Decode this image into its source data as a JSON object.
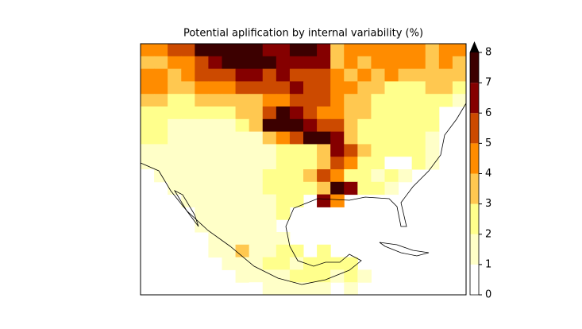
{
  "chart_data": {
    "type": "heatmap",
    "title": "Potential aplification by internal variability (%)",
    "values": [
      [
        4.5,
        4.5,
        5.5,
        5.5,
        7.5,
        7.5,
        7.5,
        7.5,
        7.5,
        6.5,
        6.5,
        7.5,
        7.5,
        6.5,
        3.5,
        4.5,
        4.5,
        4.5,
        4.5,
        4.5,
        4.5,
        3.5,
        4.5,
        4.5
      ],
      [
        3.5,
        3.5,
        4.5,
        4.5,
        5.5,
        6.5,
        7.5,
        7.5,
        7.5,
        7.5,
        6.5,
        6.5,
        6.5,
        6.5,
        3.5,
        4.5,
        3.5,
        4.5,
        4.5,
        4.5,
        4.5,
        3.5,
        4.5,
        3.5
      ],
      [
        4.5,
        4.5,
        3.5,
        4.5,
        5.5,
        5.5,
        5.5,
        6.5,
        6.5,
        5.5,
        6.5,
        5.5,
        5.5,
        5.5,
        4.5,
        3.5,
        4.5,
        3.5,
        4.5,
        3.5,
        3.5,
        3.5,
        3.5,
        3.5
      ],
      [
        4.5,
        4.5,
        3.5,
        3.5,
        4.5,
        4.5,
        4.5,
        5.5,
        5.5,
        5.5,
        5.5,
        6.5,
        5.5,
        5.5,
        4.5,
        4.5,
        3.5,
        3.5,
        2.5,
        2.5,
        2.5,
        3.5,
        3.5,
        2.5
      ],
      [
        3.5,
        3.5,
        2.5,
        2.5,
        3.5,
        3.5,
        3.5,
        3.5,
        3.5,
        4.5,
        4.5,
        5.5,
        5.5,
        5.5,
        4.5,
        3.5,
        3.5,
        2.5,
        2.5,
        2.5,
        2.5,
        2.5,
        2.5,
        1.5
      ],
      [
        2.5,
        2.5,
        2.5,
        2.5,
        2.5,
        2.5,
        2.5,
        3.5,
        3.5,
        5.5,
        7.5,
        6.5,
        5.5,
        4.5,
        4.5,
        3.5,
        3.5,
        2.5,
        2.5,
        2.5,
        2.5,
        2.5,
        null,
        null
      ],
      [
        2.5,
        2.5,
        1.5,
        1.5,
        1.5,
        1.5,
        1.5,
        2.5,
        3.5,
        7.5,
        7.5,
        7.5,
        6.5,
        5.5,
        5.5,
        3.5,
        2.5,
        2.5,
        2.5,
        2.5,
        2.5,
        2.5,
        null,
        null
      ],
      [
        2.5,
        2.5,
        1.5,
        1.5,
        1.5,
        1.5,
        1.5,
        1.5,
        1.5,
        3.5,
        4.5,
        5.5,
        7.5,
        7.5,
        6.5,
        3.5,
        2.5,
        2.5,
        2.5,
        2.5,
        2.5,
        1.5,
        null,
        null
      ],
      [
        1.5,
        1.5,
        1.5,
        1.5,
        1.5,
        1.5,
        1.5,
        1.5,
        1.5,
        1.5,
        2.5,
        2.5,
        2.5,
        3.5,
        6.5,
        5.5,
        3.5,
        2.5,
        2.5,
        2.5,
        2.5,
        1.5,
        null,
        null
      ],
      [
        1.5,
        1.5,
        1.5,
        1.5,
        1.5,
        1.5,
        1.5,
        1.5,
        1.5,
        1.5,
        2.5,
        2.5,
        2.5,
        3.5,
        5.5,
        4.5,
        2.5,
        2.5,
        0.5,
        0.5,
        2.5,
        1.5,
        null,
        null
      ],
      [
        0.5,
        1.5,
        1.5,
        1.5,
        1.5,
        1.5,
        1.5,
        1.5,
        1.5,
        2.5,
        2.5,
        2.5,
        3.5,
        5.5,
        4.5,
        2.5,
        2.5,
        1.5,
        2.5,
        1.5,
        null,
        null,
        null,
        null
      ],
      [
        null,
        null,
        1.5,
        1.5,
        1.5,
        1.5,
        1.5,
        1.5,
        1.5,
        2.5,
        2.5,
        2.5,
        2.5,
        3.5,
        7.5,
        6.5,
        2.5,
        2.5,
        1.5,
        null,
        null,
        null,
        null,
        null
      ],
      [
        null,
        null,
        null,
        1.5,
        1.5,
        1.5,
        1.5,
        1.5,
        1.5,
        1.5,
        2.5,
        2.5,
        null,
        6.5,
        4.5,
        null,
        null,
        null,
        null,
        null,
        null,
        null,
        null,
        null
      ],
      [
        null,
        null,
        null,
        null,
        1.5,
        1.5,
        1.5,
        1.5,
        1.5,
        1.5,
        2.5,
        null,
        null,
        null,
        null,
        null,
        null,
        null,
        null,
        null,
        null,
        null,
        null,
        null
      ],
      [
        null,
        null,
        null,
        null,
        1.5,
        1.5,
        1.5,
        1.5,
        1.5,
        1.5,
        null,
        null,
        null,
        null,
        null,
        null,
        null,
        null,
        null,
        null,
        null,
        null,
        null,
        null
      ],
      [
        null,
        null,
        null,
        null,
        null,
        1.5,
        1.5,
        1.5,
        1.5,
        1.5,
        1.5,
        null,
        null,
        null,
        null,
        null,
        null,
        null,
        null,
        null,
        null,
        null,
        null,
        null
      ],
      [
        null,
        null,
        null,
        null,
        null,
        1.5,
        1.5,
        3.5,
        1.5,
        1.5,
        2.5,
        2.5,
        null,
        2.5,
        null,
        null,
        null,
        null,
        null,
        null,
        null,
        null,
        null,
        null
      ],
      [
        null,
        null,
        null,
        null,
        null,
        null,
        1.5,
        1.5,
        1.5,
        2.5,
        2.5,
        1.5,
        2.5,
        2.5,
        2.5,
        2.5,
        null,
        null,
        null,
        null,
        null,
        null,
        null,
        null
      ],
      [
        null,
        null,
        null,
        null,
        null,
        null,
        null,
        1.5,
        1.5,
        1.5,
        1.5,
        2.5,
        2.5,
        2.5,
        1.5,
        2.5,
        1.5,
        null,
        null,
        null,
        null,
        null,
        null,
        null
      ],
      [
        null,
        null,
        null,
        null,
        null,
        null,
        null,
        null,
        0.5,
        1.5,
        1.5,
        1.5,
        1.5,
        1.5,
        null,
        1.5,
        null,
        null,
        null,
        null,
        null,
        null,
        null,
        null
      ]
    ],
    "colorbar": {
      "lim": [
        0,
        8
      ],
      "ticks": [
        0,
        1,
        2,
        3,
        4,
        5,
        6,
        7,
        8
      ],
      "colors": [
        "#ffffff",
        "#ffffc8",
        "#ffff8c",
        "#ffc850",
        "#ff8c00",
        "#cc4a00",
        "#850000",
        "#3c0000"
      ],
      "extend_color": "#000000"
    }
  }
}
